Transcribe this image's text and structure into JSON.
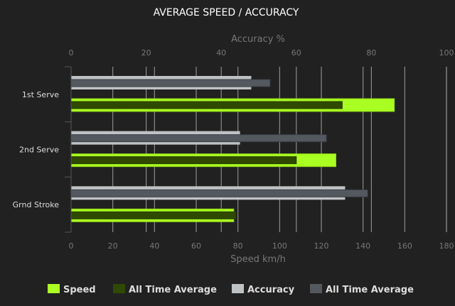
{
  "chart_data": {
    "type": "bar",
    "orientation": "horizontal",
    "title": "AVERAGE SPEED / ACCURACY",
    "categories": [
      "1st Serve",
      "2nd Serve",
      "Grnd Stroke"
    ],
    "xlabel_bottom": "Speed km/h",
    "xlabel_top": "Accuracy %",
    "xlim_bottom": [
      0,
      180
    ],
    "xlim_top": [
      0,
      100
    ],
    "ticks_bottom": [
      "0",
      "20",
      "40",
      "60",
      "80",
      "100",
      "120",
      "140",
      "160",
      "180"
    ],
    "ticks_top": [
      "0",
      "20",
      "40",
      "60",
      "80",
      "100"
    ],
    "grid": true,
    "legend_position": "bottom",
    "series": [
      {
        "name": "Speed",
        "axis": "bottom",
        "color": "#aaff22",
        "values": [
          155,
          127,
          78
        ]
      },
      {
        "name": "All Time Average",
        "axis": "bottom",
        "color": "#2f4a00",
        "values": [
          130,
          108,
          79
        ]
      },
      {
        "name": "Accuracy",
        "axis": "top",
        "color": "#bfc2c4",
        "values": [
          48,
          45,
          73
        ]
      },
      {
        "name": "All Time Average",
        "axis": "top",
        "color": "#545960",
        "values": [
          53,
          68,
          79
        ]
      }
    ]
  }
}
